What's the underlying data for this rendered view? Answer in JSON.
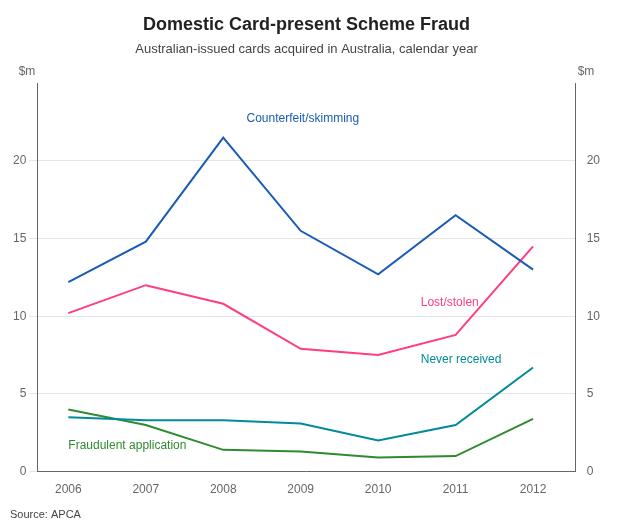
{
  "chart_data": {
    "type": "line",
    "title": "Domestic Card-present Scheme Fraud",
    "subtitle": "Australian-issued cards acquired in Australia, calendar year",
    "source": "Source: APCA",
    "x": [
      2006,
      2007,
      2008,
      2009,
      2010,
      2011,
      2012
    ],
    "series": [
      {
        "name": "Counterfeit/skimming",
        "color": "#1B5BB5",
        "values": [
          12.2,
          14.8,
          21.5,
          15.5,
          12.7,
          16.5,
          13.0
        ]
      },
      {
        "name": "Lost/stolen",
        "color": "#FF3D7F",
        "values": [
          10.2,
          12.0,
          10.8,
          7.9,
          7.5,
          8.8,
          14.5
        ]
      },
      {
        "name": "Never received",
        "color": "#008B9A",
        "values": [
          3.5,
          3.3,
          3.3,
          3.1,
          2.0,
          3.0,
          6.7
        ]
      },
      {
        "name": "Fraudulent application",
        "color": "#2E8B2E",
        "values": [
          4.0,
          3.0,
          1.4,
          1.3,
          0.9,
          1.0,
          3.4
        ]
      }
    ],
    "xlim": [
      2005.6,
      2012.55
    ],
    "xticks": [
      2006,
      2007,
      2008,
      2009,
      2010,
      2011,
      2012
    ],
    "ylim": [
      0,
      25
    ],
    "yticks": [
      0,
      5,
      10,
      15,
      20
    ],
    "y2lim": [
      0,
      25
    ],
    "y2ticks": [
      0,
      5,
      10,
      15,
      20
    ],
    "y_label": "$m",
    "y2_label": "$m",
    "annotations": [
      {
        "x": 2008.3,
        "y": 22.3,
        "text": "Counterfeit/skimming",
        "color": "#1B5BB5"
      },
      {
        "x": 2010.55,
        "y": 10.5,
        "text": "Lost/stolen",
        "color": "#FF3D7F"
      },
      {
        "x": 2010.55,
        "y": 6.8,
        "text": "Never received",
        "color": "#008B9A"
      },
      {
        "x": 2006.0,
        "y": 1.3,
        "text": "Fraudulent application",
        "color": "#2E8B2E"
      }
    ],
    "grid": "y",
    "legend": false
  }
}
